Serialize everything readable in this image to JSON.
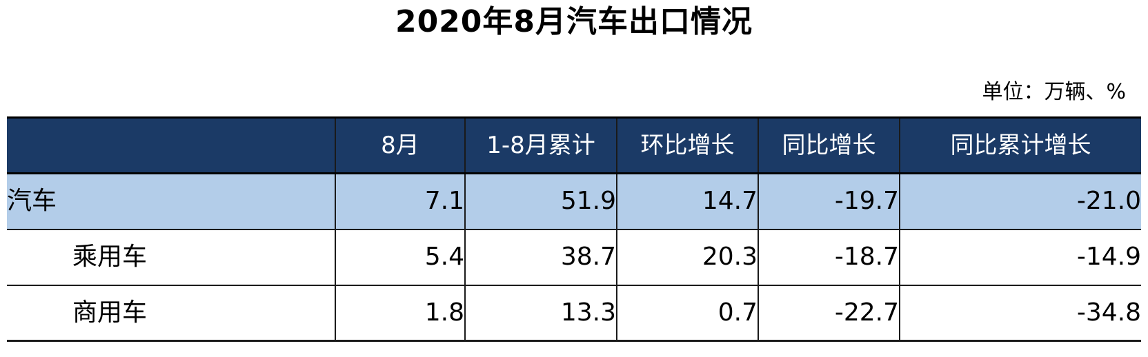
{
  "title": "2020年8月汽车出口情况",
  "unit": "单位：万辆、%",
  "table": {
    "headers": [
      "",
      "8月",
      "1-8月累计",
      "环比增长",
      "同比增长",
      "同比累计增长"
    ],
    "rows": [
      {
        "label": "汽车",
        "values": [
          "7.1",
          "51.9",
          "14.7",
          "-19.7",
          "-21.0"
        ]
      },
      {
        "label": "乘用车",
        "values": [
          "5.4",
          "38.7",
          "20.3",
          "-18.7",
          "-14.9"
        ]
      },
      {
        "label": "商用车",
        "values": [
          "1.8",
          "13.3",
          "0.7",
          "-22.7",
          "-34.8"
        ]
      }
    ]
  },
  "colors": {
    "header_bg": "#1b3a66",
    "highlight_row_bg": "#b3cde9"
  }
}
